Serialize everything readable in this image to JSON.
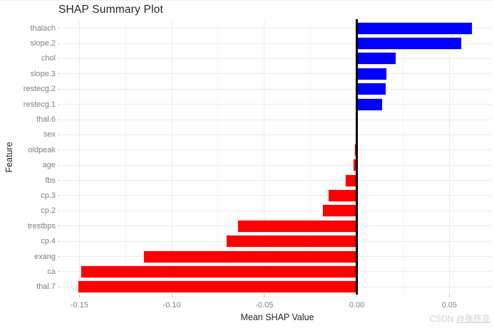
{
  "title": "SHAP Summary Plot",
  "x_axis_title": "Mean SHAP Value",
  "y_axis_title": "Feature",
  "watermark": {
    "prefix": "CSDN ",
    "user": "@张陈亚"
  },
  "chart_data": {
    "type": "bar",
    "orientation": "horizontal",
    "title": "SHAP Summary Plot",
    "xlabel": "Mean SHAP Value",
    "ylabel": "Feature",
    "categories": [
      "thalach",
      "slope.2",
      "chol",
      "slope.3",
      "restecg.2",
      "restecg.1",
      "thal.6",
      "sex",
      "oldpeak",
      "age",
      "fbs",
      "cp.3",
      "cp.2",
      "trestbps",
      "cp.4",
      "exang",
      "ca",
      "thal.7"
    ],
    "values": [
      0.0627,
      0.057,
      0.0212,
      0.0164,
      0.0158,
      0.0141,
      0.0,
      0.0,
      -0.0012,
      -0.0021,
      -0.0063,
      -0.0156,
      -0.0188,
      -0.0645,
      -0.0709,
      -0.1154,
      -0.1495,
      -0.151
    ],
    "positive_color": "#0000FF",
    "negative_color": "#FF0000",
    "zero_line_color": "#000000",
    "xlim": [
      -0.159,
      0.073
    ],
    "x_major_ticks": [
      -0.15,
      -0.1,
      -0.05,
      0.0,
      0.05
    ],
    "x_tick_labels": [
      "-0.15",
      "-0.10",
      "-0.05",
      "0.00",
      "0.05"
    ],
    "x_minor_ticks": [
      -0.125,
      -0.075,
      -0.025,
      0.025
    ],
    "grid": true,
    "legend": "none",
    "zero_line": true
  }
}
